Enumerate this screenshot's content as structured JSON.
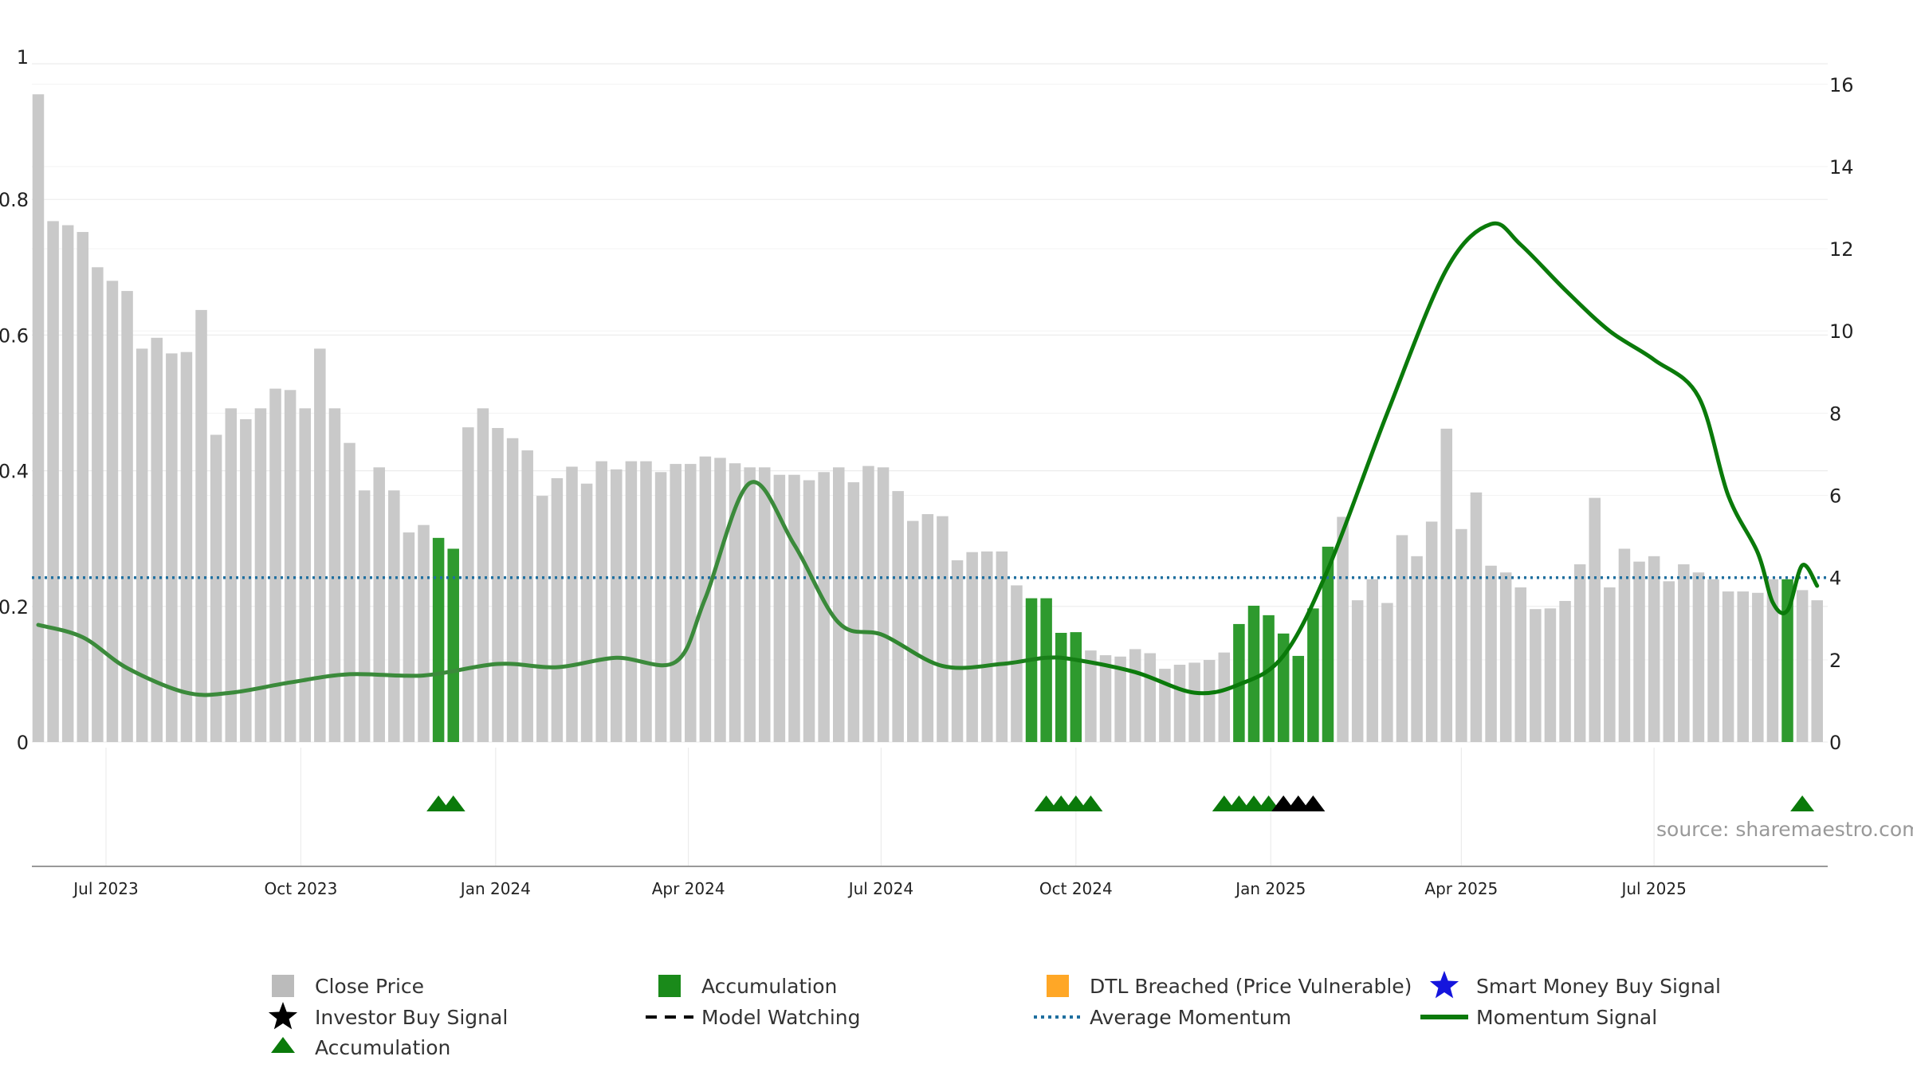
{
  "chart_data": {
    "type": "bar",
    "x_axis": {
      "type": "date",
      "tick_labels": [
        {
          "label": "Jul 2023",
          "date": "2023-07-01"
        },
        {
          "label": "Oct 2023",
          "date": "2023-10-01"
        },
        {
          "label": "Jan 2024",
          "date": "2024-01-01"
        },
        {
          "label": "Apr 2024",
          "date": "2024-04-01"
        },
        {
          "label": "Jul 2024",
          "date": "2024-07-01"
        },
        {
          "label": "Oct 2024",
          "date": "2024-10-01"
        },
        {
          "label": "Jan 2025",
          "date": "2025-01-01"
        },
        {
          "label": "Apr 2025",
          "date": "2025-04-01"
        },
        {
          "label": "Jul 2025",
          "date": "2025-07-01"
        }
      ],
      "range": [
        "2023-05-27",
        "2025-09-21"
      ]
    },
    "left_axis": {
      "range": [
        0,
        1
      ],
      "tick_labels": [
        "0",
        "0.2",
        "0.4",
        "0.6",
        "0.8",
        "1"
      ],
      "ticks": [
        0,
        0.2,
        0.4,
        0.6,
        0.8,
        1
      ]
    },
    "right_axis": {
      "range": [
        0,
        16.5
      ],
      "tick_labels": [
        "0",
        "2",
        "4",
        "6",
        "8",
        "10",
        "12",
        "14",
        "16"
      ],
      "ticks": [
        0,
        2,
        4,
        6,
        8,
        10,
        12,
        14,
        16
      ]
    },
    "grid": true,
    "bars": {
      "first_date": "2023-05-30",
      "interval_days": 7,
      "close_price": [
        0.955,
        0.768,
        0.762,
        0.752,
        0.7,
        0.68,
        0.665,
        0.58,
        0.596,
        0.573,
        0.575,
        0.637,
        0.453,
        0.492,
        0.476,
        0.492,
        0.521,
        0.519,
        0.492,
        0.58,
        0.492,
        0.441,
        0.371,
        0.405,
        0.371,
        0.309,
        0.32,
        0.301,
        0.285,
        0.464,
        0.492,
        0.463,
        0.448,
        0.43,
        0.363,
        0.389,
        0.406,
        0.381,
        0.414,
        0.402,
        0.414,
        0.414,
        0.398,
        0.41,
        0.41,
        0.421,
        0.419,
        0.411,
        0.405,
        0.405,
        0.394,
        0.394,
        0.386,
        0.398,
        0.405,
        0.383,
        0.407,
        0.405,
        0.37,
        0.326,
        0.336,
        0.333,
        0.268,
        0.28,
        0.281,
        0.281,
        0.231,
        0.212,
        0.212,
        0.161,
        0.162,
        0.135,
        0.128,
        0.126,
        0.137,
        0.131,
        0.108,
        0.114,
        0.117,
        0.121,
        0.132,
        0.174,
        0.201,
        0.187,
        0.16,
        0.127,
        0.197,
        0.288,
        0.332,
        0.209,
        0.24,
        0.205,
        0.305,
        0.274,
        0.325,
        0.462,
        0.314,
        0.368,
        0.26,
        0.25,
        0.228,
        0.196,
        0.197,
        0.208,
        0.262,
        0.36,
        0.228,
        0.285,
        0.266,
        0.274,
        0.237,
        0.262,
        0.25,
        0.24,
        0.222,
        0.222,
        0.22,
        0.24,
        0.24,
        0.224,
        0.209
      ],
      "accumulation_indices": [
        27,
        28,
        67,
        68,
        69,
        70,
        81,
        82,
        83,
        84,
        85,
        86,
        87,
        118
      ]
    },
    "average_momentum": 4.0,
    "momentum_signal": {
      "x": [
        "2023-05-30",
        "2023-06-20",
        "2023-07-11",
        "2023-08-08",
        "2023-08-29",
        "2023-09-26",
        "2023-10-24",
        "2023-11-28",
        "2024-01-02",
        "2024-01-30",
        "2024-02-27",
        "2024-03-26",
        "2024-04-09",
        "2024-04-30",
        "2024-05-21",
        "2024-06-11",
        "2024-07-02",
        "2024-07-30",
        "2024-08-27",
        "2024-09-17",
        "2024-10-01",
        "2024-10-29",
        "2024-11-26",
        "2024-12-17",
        "2025-01-07",
        "2025-01-28",
        "2025-02-25",
        "2025-03-25",
        "2025-04-15",
        "2025-04-29",
        "2025-05-20",
        "2025-06-10",
        "2025-07-01",
        "2025-07-22",
        "2025-08-05",
        "2025-08-19",
        "2025-08-26",
        "2025-09-02",
        "2025-09-09",
        "2025-09-16"
      ],
      "y": [
        2.85,
        2.55,
        1.8,
        1.2,
        1.2,
        1.45,
        1.65,
        1.62,
        1.9,
        1.82,
        2.05,
        1.95,
        3.5,
        6.3,
        4.8,
        2.9,
        2.6,
        1.85,
        1.9,
        2.05,
        2.0,
        1.7,
        1.2,
        1.4,
        2.1,
        4.2,
        8.0,
        11.5,
        12.6,
        12.1,
        11.0,
        10.0,
        9.3,
        8.4,
        6.0,
        4.6,
        3.4,
        3.2,
        4.3,
        3.8
      ]
    },
    "accumulation_markers": [
      "2023-12-05",
      "2023-12-12",
      "2024-09-17",
      "2024-09-24",
      "2024-10-01",
      "2024-10-08",
      "2024-12-10",
      "2024-12-17",
      "2024-12-24",
      "2024-12-31",
      "2025-09-09"
    ],
    "investor_buy_markers": [
      "2025-01-07",
      "2025-01-14",
      "2025-01-21"
    ],
    "source_text": "source: sharemaestro.com",
    "legend": {
      "placement": "bottom",
      "items": [
        {
          "label": "Close Price",
          "symbol": "square",
          "color": "#bbbbbb"
        },
        {
          "label": "Accumulation",
          "symbol": "square",
          "color": "#1a8a1a"
        },
        {
          "label": "DTL Breached (Price Vulnerable)",
          "symbol": "square",
          "color": "#ffa726"
        },
        {
          "label": "Smart Money Buy Signal",
          "symbol": "star",
          "color": "#1515dd"
        },
        {
          "label": "Investor Buy Signal",
          "symbol": "star",
          "color": "#000000"
        },
        {
          "label": "Model Watching",
          "symbol": "dashed",
          "color": "#000000"
        },
        {
          "label": "Average Momentum",
          "symbol": "dotted",
          "color": "#1f6f9f"
        },
        {
          "label": "Momentum Signal",
          "symbol": "line",
          "color": "#0a7a0a"
        },
        {
          "label": "Accumulation",
          "symbol": "triangle",
          "color": "#0a7a0a"
        }
      ]
    },
    "colors": {
      "close_price": "#c9c9c9",
      "accumulation_bar": "#2e9a2e",
      "momentum_line_early": "#3b8a3b",
      "momentum_line_late": "#0a7a0a",
      "average_momentum": "#1f6f9f",
      "accumulation_marker": "#0a7a0a",
      "investor_buy_marker": "#000000"
    }
  }
}
